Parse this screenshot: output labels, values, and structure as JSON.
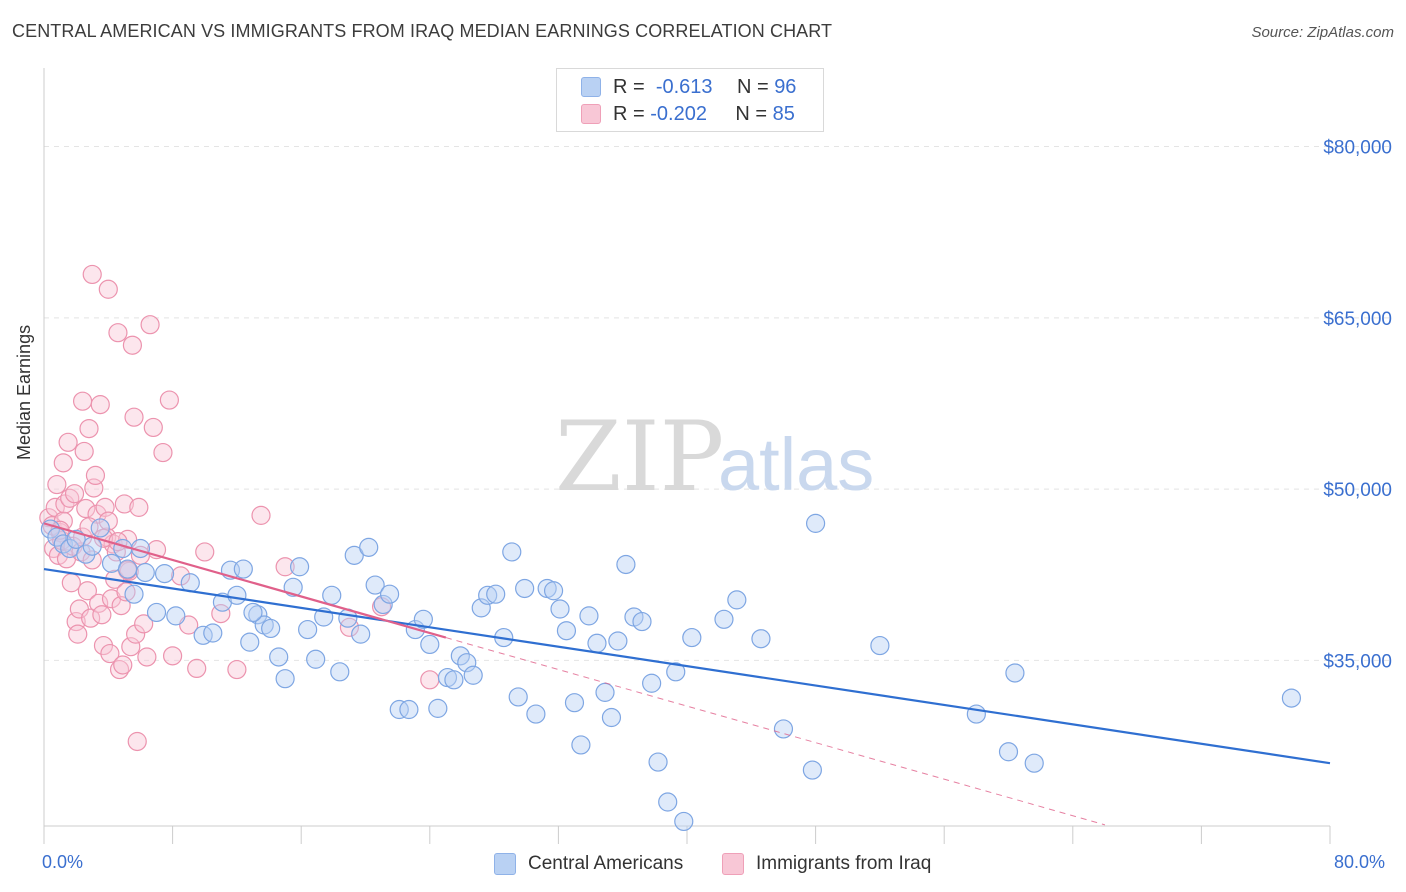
{
  "title": "CENTRAL AMERICAN VS IMMIGRANTS FROM IRAQ MEDIAN EARNINGS CORRELATION CHART",
  "source": "Source: ZipAtlas.com",
  "watermark": {
    "zip": "ZIP",
    "atlas": "atlas"
  },
  "legend": {
    "rows": [
      {
        "r_label": "R =",
        "r_value": "-0.613",
        "n_label": "N =",
        "n_value": "96"
      },
      {
        "r_label": "R =",
        "r_value": "-0.202",
        "n_label": "N =",
        "n_value": "85"
      }
    ]
  },
  "bottom_legend": [
    "Central Americans",
    "Immigrants from Iraq"
  ],
  "colors": {
    "blue_fill": "#b9d1f3",
    "blue_stroke": "#7ea6e3",
    "blue_line": "#2f6fd1",
    "pink_fill": "#f8c7d6",
    "pink_stroke": "#ec93ae",
    "pink_line": "#e0608a",
    "axis_text": "#3a6fcf",
    "grid": "#e4e4e4"
  },
  "chart_data": {
    "type": "scatter",
    "title": "CENTRAL AMERICAN VS IMMIGRANTS FROM IRAQ MEDIAN EARNINGS CORRELATION CHART",
    "xlabel": "",
    "ylabel": "Median Earnings",
    "xlim": [
      0,
      80
    ],
    "ylim": [
      20500,
      86000
    ],
    "x_tick_labels": {
      "min": "0.0%",
      "max": "80.0%"
    },
    "y_ticks": [
      {
        "value": 35000,
        "label": "$35,000"
      },
      {
        "value": 50000,
        "label": "$50,000"
      },
      {
        "value": 65000,
        "label": "$65,000"
      },
      {
        "value": 80000,
        "label": "$80,000"
      }
    ],
    "series": [
      {
        "name": "Central Americans",
        "r": -0.613,
        "n": 96,
        "trend": {
          "x": [
            0,
            80
          ],
          "y": [
            43000,
            26000
          ],
          "style": "solid"
        },
        "points": [
          [
            0.4,
            46500
          ],
          [
            0.8,
            45800
          ],
          [
            1.2,
            45200
          ],
          [
            1.6,
            44800
          ],
          [
            2.0,
            45600
          ],
          [
            2.6,
            44300
          ],
          [
            3.0,
            45000
          ],
          [
            3.5,
            46600
          ],
          [
            4.2,
            43500
          ],
          [
            4.9,
            44800
          ],
          [
            5.2,
            43000
          ],
          [
            5.6,
            40800
          ],
          [
            6.3,
            42700
          ],
          [
            7.0,
            39200
          ],
          [
            7.5,
            42600
          ],
          [
            8.2,
            38900
          ],
          [
            9.1,
            41800
          ],
          [
            9.9,
            37200
          ],
          [
            10.5,
            37400
          ],
          [
            11.1,
            40100
          ],
          [
            11.6,
            42900
          ],
          [
            12.0,
            40700
          ],
          [
            12.4,
            43000
          ],
          [
            12.8,
            36600
          ],
          [
            13.3,
            39000
          ],
          [
            13.7,
            38100
          ],
          [
            14.1,
            37800
          ],
          [
            14.6,
            35300
          ],
          [
            15.0,
            33400
          ],
          [
            15.5,
            41400
          ],
          [
            15.9,
            43200
          ],
          [
            16.4,
            37700
          ],
          [
            16.9,
            35100
          ],
          [
            17.4,
            38800
          ],
          [
            17.9,
            40700
          ],
          [
            18.4,
            34000
          ],
          [
            18.9,
            38700
          ],
          [
            19.3,
            44200
          ],
          [
            19.7,
            37300
          ],
          [
            20.2,
            44900
          ],
          [
            20.6,
            41600
          ],
          [
            21.1,
            39900
          ],
          [
            21.5,
            40800
          ],
          [
            22.1,
            30700
          ],
          [
            22.7,
            30700
          ],
          [
            23.1,
            37700
          ],
          [
            23.6,
            38600
          ],
          [
            24.0,
            36400
          ],
          [
            24.5,
            30800
          ],
          [
            25.1,
            33500
          ],
          [
            25.5,
            33300
          ],
          [
            25.9,
            35400
          ],
          [
            26.3,
            34800
          ],
          [
            26.7,
            33700
          ],
          [
            27.2,
            39600
          ],
          [
            27.6,
            40700
          ],
          [
            28.1,
            40800
          ],
          [
            28.6,
            37000
          ],
          [
            29.1,
            44500
          ],
          [
            29.5,
            31800
          ],
          [
            29.9,
            41300
          ],
          [
            30.6,
            30300
          ],
          [
            31.3,
            41300
          ],
          [
            31.7,
            41100
          ],
          [
            32.1,
            39500
          ],
          [
            32.5,
            37600
          ],
          [
            33.0,
            31300
          ],
          [
            33.4,
            27600
          ],
          [
            33.9,
            38900
          ],
          [
            34.4,
            36500
          ],
          [
            34.9,
            32200
          ],
          [
            35.3,
            30000
          ],
          [
            35.7,
            36700
          ],
          [
            36.2,
            43400
          ],
          [
            36.7,
            38800
          ],
          [
            37.2,
            38400
          ],
          [
            37.8,
            33000
          ],
          [
            38.2,
            26100
          ],
          [
            38.8,
            22600
          ],
          [
            39.3,
            34000
          ],
          [
            39.8,
            20900
          ],
          [
            40.3,
            37000
          ],
          [
            42.3,
            38600
          ],
          [
            43.1,
            40300
          ],
          [
            44.6,
            36900
          ],
          [
            46.0,
            29000
          ],
          [
            47.8,
            25400
          ],
          [
            48.0,
            47000
          ],
          [
            52.0,
            36300
          ],
          [
            58.0,
            30300
          ],
          [
            60.0,
            27000
          ],
          [
            60.4,
            33900
          ],
          [
            61.6,
            26000
          ],
          [
            77.6,
            31700
          ],
          [
            6.0,
            44800
          ],
          [
            13.0,
            39200
          ]
        ]
      },
      {
        "name": "Immigrants from Iraq",
        "r": -0.202,
        "n": 85,
        "trend": {
          "x": [
            0,
            25
          ],
          "y": [
            47000,
            37000
          ],
          "style": "solid"
        },
        "trend_extension": {
          "x": [
            25,
            66
          ],
          "y": [
            37000,
            20600
          ],
          "style": "dashed"
        },
        "points": [
          [
            0.3,
            47500
          ],
          [
            0.5,
            46800
          ],
          [
            0.6,
            44800
          ],
          [
            0.7,
            48400
          ],
          [
            0.8,
            50400
          ],
          [
            0.9,
            44200
          ],
          [
            1.0,
            46200
          ],
          [
            1.1,
            45500
          ],
          [
            1.2,
            47200
          ],
          [
            1.3,
            48700
          ],
          [
            1.4,
            43900
          ],
          [
            1.5,
            54100
          ],
          [
            1.6,
            49200
          ],
          [
            1.7,
            41800
          ],
          [
            1.8,
            45000
          ],
          [
            1.9,
            49600
          ],
          [
            2.0,
            38400
          ],
          [
            2.1,
            37300
          ],
          [
            2.2,
            39500
          ],
          [
            2.3,
            44500
          ],
          [
            2.4,
            57700
          ],
          [
            2.5,
            53300
          ],
          [
            2.6,
            48300
          ],
          [
            2.7,
            41100
          ],
          [
            2.8,
            55300
          ],
          [
            2.9,
            38700
          ],
          [
            3.0,
            43800
          ],
          [
            3.1,
            50100
          ],
          [
            3.2,
            51200
          ],
          [
            3.3,
            47800
          ],
          [
            3.4,
            40000
          ],
          [
            3.5,
            57400
          ],
          [
            3.6,
            39000
          ],
          [
            3.7,
            36300
          ],
          [
            3.8,
            48400
          ],
          [
            3.9,
            45800
          ],
          [
            4.0,
            47200
          ],
          [
            4.1,
            35600
          ],
          [
            4.2,
            40400
          ],
          [
            4.3,
            45200
          ],
          [
            4.4,
            42100
          ],
          [
            4.5,
            44500
          ],
          [
            4.6,
            63700
          ],
          [
            4.7,
            34200
          ],
          [
            4.8,
            39800
          ],
          [
            4.9,
            34600
          ],
          [
            5.0,
            48700
          ],
          [
            5.1,
            41000
          ],
          [
            5.2,
            45600
          ],
          [
            5.3,
            42800
          ],
          [
            5.4,
            36200
          ],
          [
            5.5,
            62600
          ],
          [
            5.6,
            56300
          ],
          [
            5.7,
            37300
          ],
          [
            5.8,
            27900
          ],
          [
            5.9,
            48400
          ],
          [
            6.0,
            44200
          ],
          [
            6.2,
            38200
          ],
          [
            6.4,
            35300
          ],
          [
            6.6,
            64400
          ],
          [
            6.8,
            55400
          ],
          [
            7.0,
            44700
          ],
          [
            7.4,
            53200
          ],
          [
            7.8,
            57800
          ],
          [
            8.0,
            35400
          ],
          [
            8.5,
            42400
          ],
          [
            9.0,
            38100
          ],
          [
            9.5,
            34300
          ],
          [
            10.0,
            44500
          ],
          [
            11.0,
            39100
          ],
          [
            12.0,
            34200
          ],
          [
            13.5,
            47700
          ],
          [
            15.0,
            43200
          ],
          [
            4.0,
            67500
          ],
          [
            3.0,
            68800
          ],
          [
            1.0,
            46400
          ],
          [
            2.4,
            45800
          ],
          [
            3.7,
            45700
          ],
          [
            4.6,
            45400
          ],
          [
            5.2,
            42900
          ],
          [
            19.0,
            37900
          ],
          [
            21.0,
            39700
          ],
          [
            24.0,
            33300
          ],
          [
            1.2,
            52300
          ],
          [
            2.8,
            46700
          ]
        ]
      }
    ]
  }
}
